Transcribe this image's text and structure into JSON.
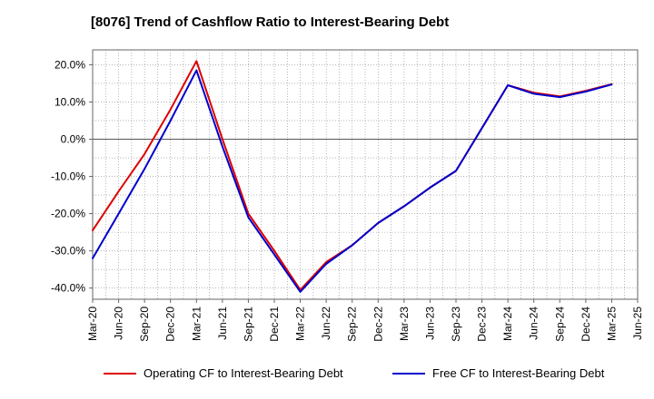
{
  "title": "[8076]  Trend of Cashflow Ratio to Interest-Bearing Debt",
  "colors": {
    "operating": "#dd0000",
    "free": "#0000cc",
    "grid": "#888888",
    "axis": "#666666"
  },
  "legend": {
    "operating": "Operating CF to Interest-Bearing Debt",
    "free": "Free CF to Interest-Bearing Debt"
  },
  "chart_data": {
    "type": "line",
    "title": "[8076]  Trend of Cashflow Ratio to Interest-Bearing Debt",
    "xlabel": "",
    "ylabel": "",
    "ylim": [
      -43,
      24
    ],
    "y_ticks": [
      20,
      10,
      0,
      -10,
      -20,
      -30,
      -40
    ],
    "y_tick_labels": [
      "20.0%",
      "10.0%",
      "0.0%",
      "-10.0%",
      "-20.0%",
      "-30.0%",
      "-40.0%"
    ],
    "categories": [
      "Mar-20",
      "Jun-20",
      "Sep-20",
      "Dec-20",
      "Mar-21",
      "Jun-21",
      "Sep-21",
      "Dec-21",
      "Mar-22",
      "Jun-22",
      "Sep-22",
      "Dec-22",
      "Mar-23",
      "Jun-23",
      "Sep-23",
      "Dec-23",
      "Mar-24",
      "Jun-24",
      "Sep-24",
      "Dec-24",
      "Mar-25",
      "Jun-25"
    ],
    "grid": true,
    "legend_position": "bottom",
    "series": [
      {
        "name": "Operating CF to Interest-Bearing Debt",
        "color": "#dd0000",
        "values": [
          -24.5,
          -14,
          -4,
          8,
          21,
          0,
          -20,
          -30,
          -40.5,
          -33,
          -28.5,
          -22.5,
          -18,
          -13,
          -8.5,
          3,
          14.5,
          12.5,
          11.5,
          13,
          14.8,
          null
        ]
      },
      {
        "name": "Free CF to Interest-Bearing Debt",
        "color": "#0000cc",
        "values": [
          -32,
          -20,
          -8,
          5,
          18.5,
          -2,
          -21,
          -31,
          -41,
          -33.5,
          -28.5,
          -22.5,
          -18,
          -13,
          -8.5,
          3,
          14.5,
          12.2,
          11.3,
          12.8,
          14.7,
          null
        ]
      }
    ]
  }
}
